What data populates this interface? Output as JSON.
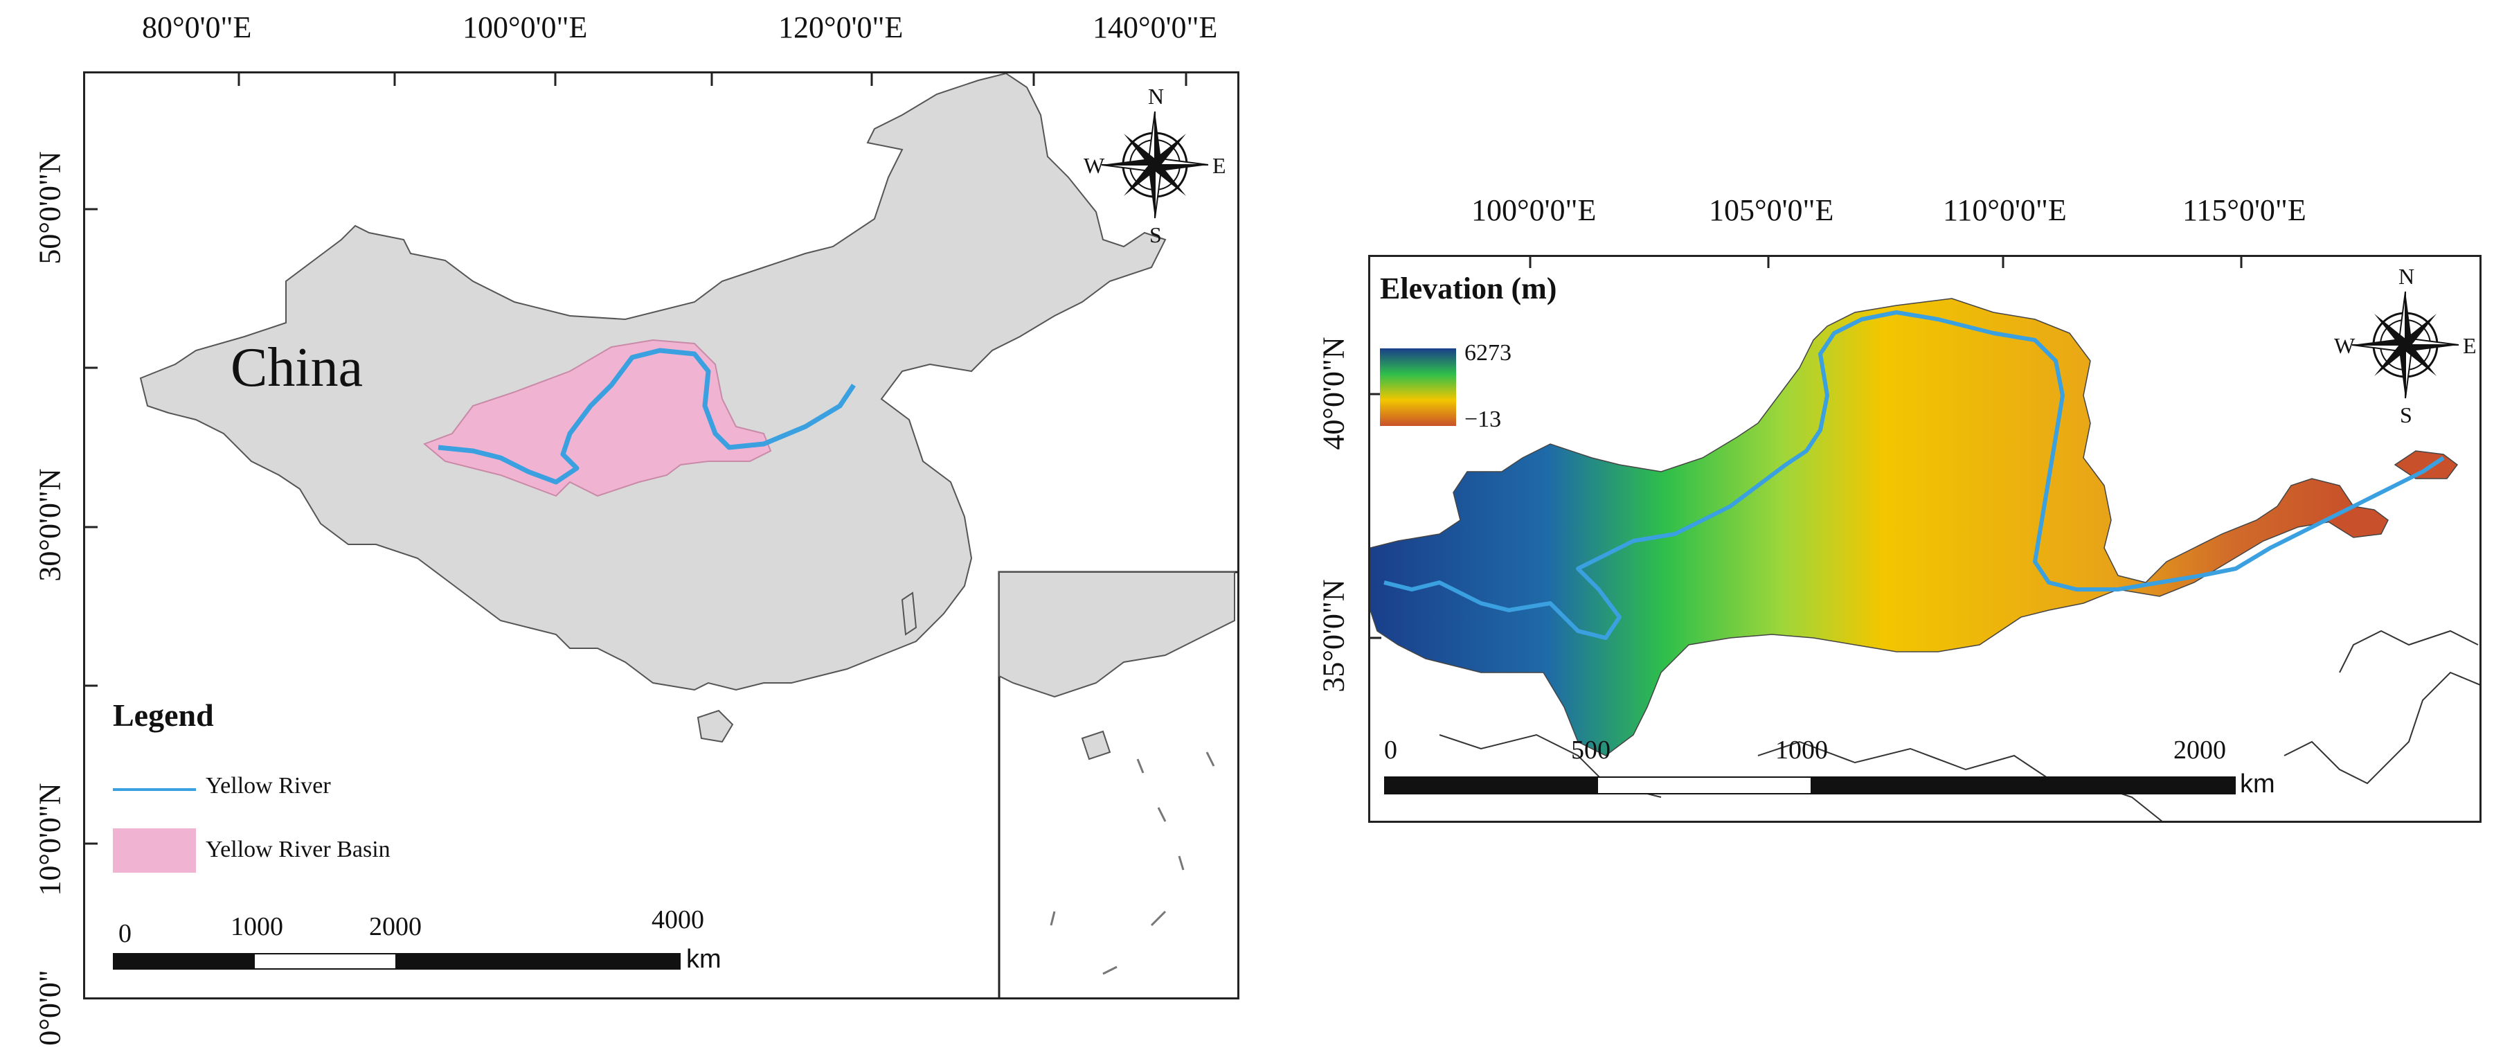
{
  "left_map": {
    "top_ticks": [
      "80°0'0\"E",
      "100°0'0\"E",
      "120°0'0\"E",
      "140°0'0\"E"
    ],
    "left_ticks": [
      "50°0'0\"N",
      "30°0'0\"N",
      "10°0'0\"N",
      "0°0'0\""
    ],
    "country_label": "China",
    "compass": {
      "n": "N",
      "s": "S",
      "e": "E",
      "w": "W"
    },
    "legend": {
      "title": "Legend",
      "items": [
        {
          "label": "Yellow River",
          "color": "#3aa0e0",
          "symbol": "line"
        },
        {
          "label": "Yellow River Basin",
          "color": "#f0b4d2",
          "symbol": "fill"
        }
      ]
    },
    "scalebar": {
      "labels": [
        "0",
        "1000",
        "2000",
        "4000"
      ],
      "unit": "km"
    },
    "colors": {
      "land": "#d9d9d9",
      "basin": "#f0b4d2",
      "river": "#3aa0e0"
    }
  },
  "right_map": {
    "top_ticks": [
      "100°0'0\"E",
      "105°0'0\"E",
      "110°0'0\"E",
      "115°0'0\"E"
    ],
    "left_ticks": [
      "40°0'0\"N",
      "35°0'0\"N"
    ],
    "elevation": {
      "title": "Elevation (m)",
      "max": "6273",
      "min": "−13"
    },
    "compass": {
      "n": "N",
      "s": "S",
      "e": "E",
      "w": "W"
    },
    "scalebar": {
      "labels": [
        "0",
        "500",
        "1000",
        "2000"
      ],
      "unit": "km"
    },
    "colors": {
      "high": "#1a3f8a",
      "mid": "#2fbf4a",
      "low": "#f2c600",
      "lowest": "#c8502a",
      "river": "#3aa0e0"
    }
  }
}
